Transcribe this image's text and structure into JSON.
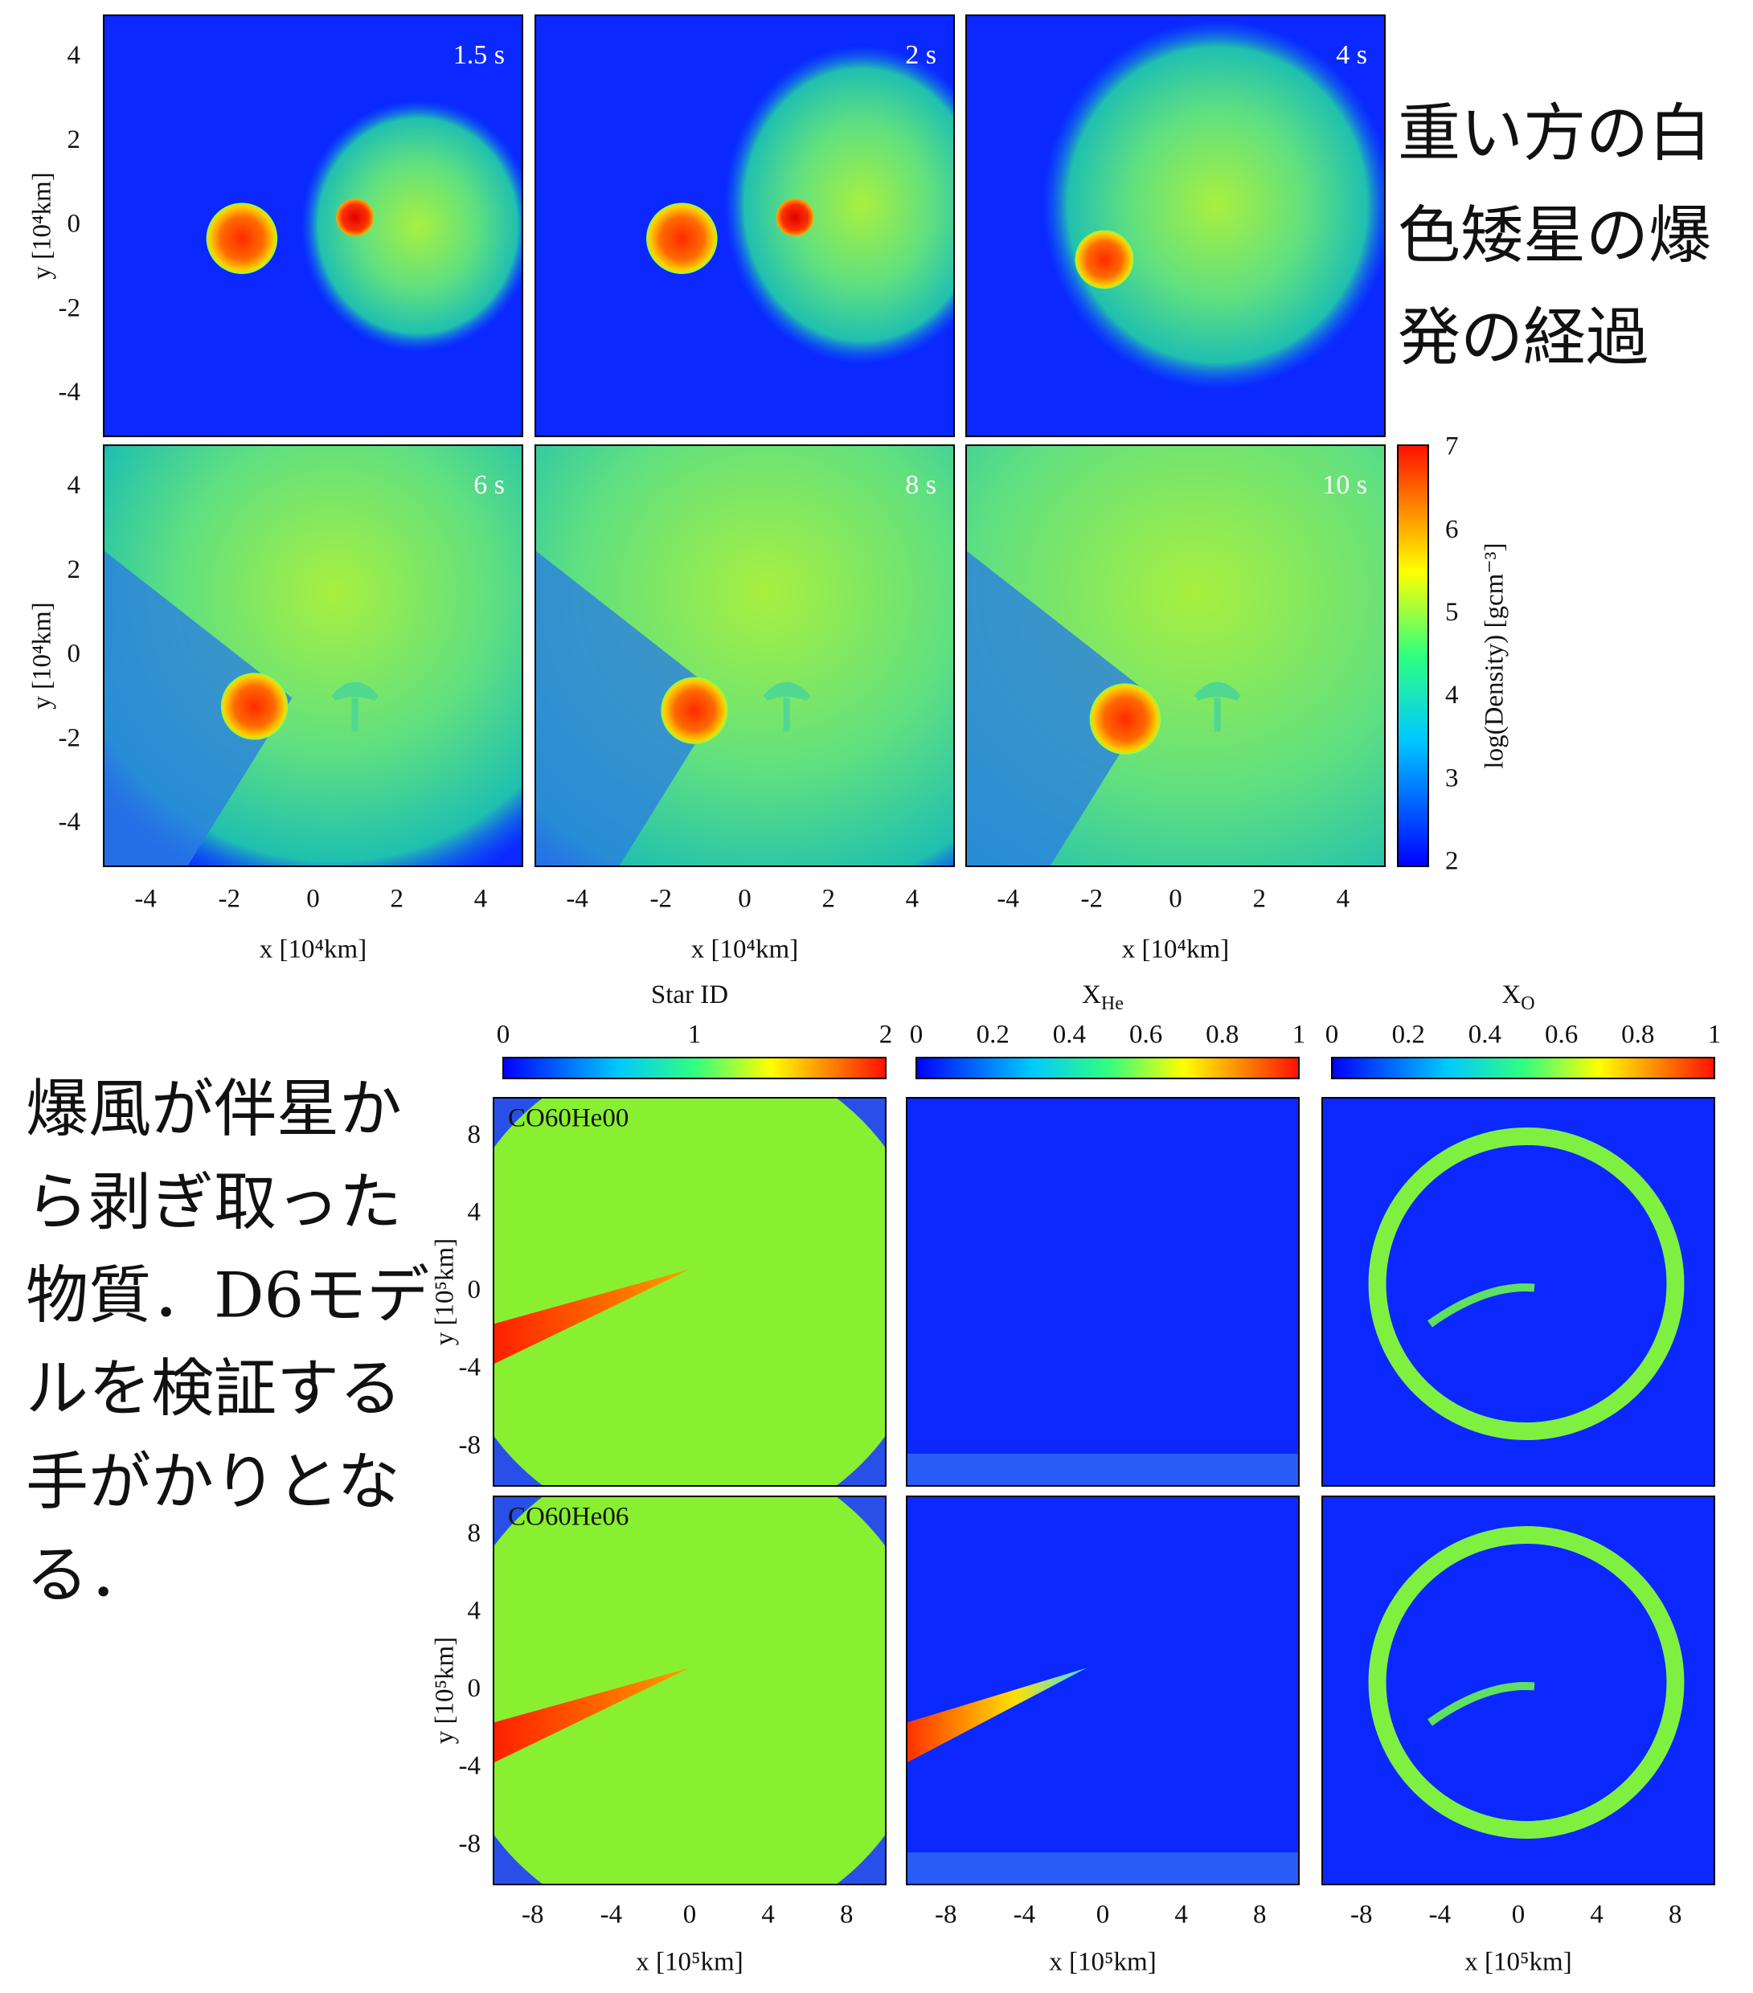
{
  "top_figure": {
    "panels": [
      {
        "time": "1.5 s"
      },
      {
        "time": "2 s"
      },
      {
        "time": "4 s"
      },
      {
        "time": "6 s"
      },
      {
        "time": "8 s"
      },
      {
        "time": "10 s"
      }
    ],
    "y_label": "y [10⁴km]",
    "x_label": "x [10⁴km]",
    "y_ticks": [
      "4",
      "2",
      "0",
      "-2",
      "-4"
    ],
    "x_ticks": [
      "-4",
      "-2",
      "0",
      "2",
      "4"
    ],
    "colorbar": {
      "label": "log(Density) [gcm⁻³]",
      "ticks": [
        "7",
        "6",
        "5",
        "4",
        "3",
        "2"
      ]
    }
  },
  "top_caption": [
    "重い方の白",
    "色矮星の爆",
    "発の経過"
  ],
  "bottom_caption": [
    "爆風が伴星か",
    "ら剥ぎ取った",
    "物質．D6モデ",
    "ルを検証する",
    "手がかりとな",
    "る．"
  ],
  "bottom_figure": {
    "columns": [
      {
        "title": "Star ID",
        "ticks": [
          "0",
          "1",
          "2"
        ]
      },
      {
        "title": "X",
        "title_sub": "He",
        "ticks": [
          "0",
          "0.2",
          "0.4",
          "0.6",
          "0.8",
          "1"
        ]
      },
      {
        "title": "X",
        "title_sub": "O",
        "ticks": [
          "0",
          "0.2",
          "0.4",
          "0.6",
          "0.8",
          "1"
        ]
      }
    ],
    "rows": [
      {
        "label": "CO60He00"
      },
      {
        "label": "CO60He06"
      }
    ],
    "y_label": "y [10⁵km]",
    "x_label": "x [10⁵km]",
    "y_ticks": [
      "8",
      "4",
      "0",
      "-4",
      "-8"
    ],
    "x_ticks": [
      "-8",
      "-4",
      "0",
      "4",
      "8"
    ]
  }
}
